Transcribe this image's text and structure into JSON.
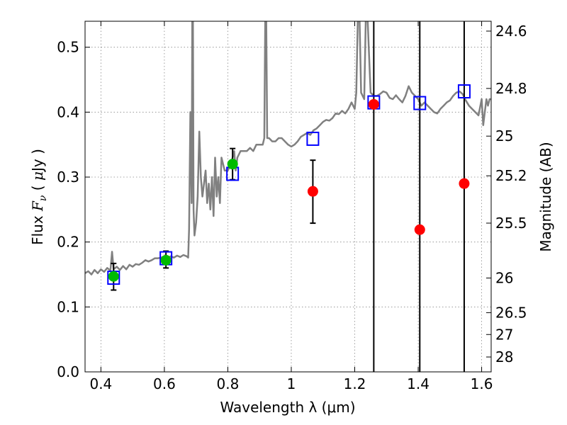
{
  "chart_data": {
    "type": "scatter",
    "xlabel": "Wavelength  λ (μm)",
    "ylabel": "Flux  F_ν ( μJy )",
    "ylabel_parts": {
      "pre": "Flux  ",
      "F": "F",
      "nu": "ν",
      "paren_open": "  ( ",
      "mu": "μ",
      "unit": "Jy )"
    },
    "y2label": "Magnitude (AB)",
    "xlim": [
      0.35,
      1.63
    ],
    "ylim": [
      0.0,
      0.54
    ],
    "grid": true,
    "xticks": [
      {
        "v": 0.4,
        "label": "0.4"
      },
      {
        "v": 0.6,
        "label": "0.6"
      },
      {
        "v": 0.8,
        "label": "0.8"
      },
      {
        "v": 1.0,
        "label": "1"
      },
      {
        "v": 1.2,
        "label": "1.2"
      },
      {
        "v": 1.4,
        "label": "1.4"
      },
      {
        "v": 1.6,
        "label": "1.6"
      }
    ],
    "yticks": [
      {
        "v": 0.0,
        "label": "0.0"
      },
      {
        "v": 0.1,
        "label": "0.1"
      },
      {
        "v": 0.2,
        "label": "0.2"
      },
      {
        "v": 0.3,
        "label": "0.3"
      },
      {
        "v": 0.4,
        "label": "0.4"
      },
      {
        "v": 0.5,
        "label": "0.5"
      }
    ],
    "y2ticks": [
      {
        "label": "24.6"
      },
      {
        "label": "24.8"
      },
      {
        "label": "25"
      },
      {
        "label": "25.2"
      },
      {
        "label": "25.5"
      },
      {
        "label": "26"
      },
      {
        "label": "26.5"
      },
      {
        "label": "27"
      },
      {
        "label": "28"
      }
    ],
    "colors": {
      "spectrum": "#808080",
      "model": "#0000ff",
      "detection": "#00bb00",
      "upper": "#ff0000",
      "errorbar": "#000000",
      "vline": "#000000",
      "grid": "#888888"
    },
    "spectrum": [
      [
        0.35,
        0.152
      ],
      [
        0.36,
        0.155
      ],
      [
        0.37,
        0.15
      ],
      [
        0.38,
        0.157
      ],
      [
        0.39,
        0.152
      ],
      [
        0.4,
        0.158
      ],
      [
        0.41,
        0.154
      ],
      [
        0.42,
        0.16
      ],
      [
        0.43,
        0.156
      ],
      [
        0.435,
        0.185
      ],
      [
        0.44,
        0.158
      ],
      [
        0.45,
        0.162
      ],
      [
        0.46,
        0.157
      ],
      [
        0.47,
        0.163
      ],
      [
        0.48,
        0.158
      ],
      [
        0.49,
        0.165
      ],
      [
        0.5,
        0.162
      ],
      [
        0.51,
        0.166
      ],
      [
        0.52,
        0.165
      ],
      [
        0.53,
        0.168
      ],
      [
        0.54,
        0.172
      ],
      [
        0.55,
        0.17
      ],
      [
        0.56,
        0.172
      ],
      [
        0.57,
        0.175
      ],
      [
        0.58,
        0.175
      ],
      [
        0.59,
        0.176
      ],
      [
        0.6,
        0.178
      ],
      [
        0.61,
        0.175
      ],
      [
        0.62,
        0.178
      ],
      [
        0.63,
        0.176
      ],
      [
        0.64,
        0.179
      ],
      [
        0.65,
        0.177
      ],
      [
        0.66,
        0.18
      ],
      [
        0.67,
        0.178
      ],
      [
        0.675,
        0.176
      ],
      [
        0.678,
        0.22
      ],
      [
        0.682,
        0.4
      ],
      [
        0.686,
        0.26
      ],
      [
        0.688,
        0.55
      ],
      [
        0.69,
        0.55
      ],
      [
        0.692,
        0.25
      ],
      [
        0.695,
        0.21
      ],
      [
        0.7,
        0.23
      ],
      [
        0.705,
        0.27
      ],
      [
        0.71,
        0.37
      ],
      [
        0.715,
        0.3
      ],
      [
        0.72,
        0.27
      ],
      [
        0.73,
        0.31
      ],
      [
        0.735,
        0.26
      ],
      [
        0.74,
        0.29
      ],
      [
        0.745,
        0.25
      ],
      [
        0.75,
        0.3
      ],
      [
        0.755,
        0.24
      ],
      [
        0.76,
        0.33
      ],
      [
        0.765,
        0.27
      ],
      [
        0.77,
        0.3
      ],
      [
        0.775,
        0.26
      ],
      [
        0.78,
        0.33
      ],
      [
        0.79,
        0.31
      ],
      [
        0.8,
        0.31
      ],
      [
        0.81,
        0.32
      ],
      [
        0.82,
        0.34
      ],
      [
        0.825,
        0.31
      ],
      [
        0.83,
        0.33
      ],
      [
        0.84,
        0.34
      ],
      [
        0.85,
        0.34
      ],
      [
        0.86,
        0.34
      ],
      [
        0.87,
        0.345
      ],
      [
        0.88,
        0.34
      ],
      [
        0.89,
        0.35
      ],
      [
        0.9,
        0.35
      ],
      [
        0.91,
        0.35
      ],
      [
        0.915,
        0.36
      ],
      [
        0.918,
        0.55
      ],
      [
        0.921,
        0.55
      ],
      [
        0.924,
        0.36
      ],
      [
        0.93,
        0.36
      ],
      [
        0.94,
        0.355
      ],
      [
        0.95,
        0.355
      ],
      [
        0.96,
        0.36
      ],
      [
        0.97,
        0.36
      ],
      [
        0.98,
        0.355
      ],
      [
        0.99,
        0.35
      ],
      [
        1.0,
        0.347
      ],
      [
        1.01,
        0.35
      ],
      [
        1.02,
        0.355
      ],
      [
        1.03,
        0.362
      ],
      [
        1.04,
        0.365
      ],
      [
        1.05,
        0.368
      ],
      [
        1.06,
        0.365
      ],
      [
        1.07,
        0.372
      ],
      [
        1.08,
        0.375
      ],
      [
        1.09,
        0.38
      ],
      [
        1.1,
        0.385
      ],
      [
        1.11,
        0.388
      ],
      [
        1.12,
        0.387
      ],
      [
        1.13,
        0.391
      ],
      [
        1.14,
        0.398
      ],
      [
        1.15,
        0.397
      ],
      [
        1.16,
        0.402
      ],
      [
        1.17,
        0.398
      ],
      [
        1.18,
        0.405
      ],
      [
        1.19,
        0.415
      ],
      [
        1.2,
        0.405
      ],
      [
        1.205,
        0.43
      ],
      [
        1.21,
        0.55
      ],
      [
        1.215,
        0.55
      ],
      [
        1.22,
        0.43
      ],
      [
        1.23,
        0.42
      ],
      [
        1.235,
        0.55
      ],
      [
        1.24,
        0.55
      ],
      [
        1.25,
        0.43
      ],
      [
        1.26,
        0.425
      ],
      [
        1.27,
        0.425
      ],
      [
        1.28,
        0.428
      ],
      [
        1.29,
        0.432
      ],
      [
        1.3,
        0.43
      ],
      [
        1.31,
        0.422
      ],
      [
        1.32,
        0.42
      ],
      [
        1.33,
        0.426
      ],
      [
        1.34,
        0.42
      ],
      [
        1.35,
        0.415
      ],
      [
        1.36,
        0.425
      ],
      [
        1.37,
        0.44
      ],
      [
        1.38,
        0.43
      ],
      [
        1.39,
        0.425
      ],
      [
        1.4,
        0.42
      ],
      [
        1.41,
        0.41
      ],
      [
        1.42,
        0.415
      ],
      [
        1.43,
        0.41
      ],
      [
        1.44,
        0.405
      ],
      [
        1.45,
        0.4
      ],
      [
        1.46,
        0.398
      ],
      [
        1.47,
        0.405
      ],
      [
        1.48,
        0.41
      ],
      [
        1.49,
        0.415
      ],
      [
        1.5,
        0.418
      ],
      [
        1.51,
        0.425
      ],
      [
        1.52,
        0.43
      ],
      [
        1.53,
        0.432
      ],
      [
        1.54,
        0.428
      ],
      [
        1.55,
        0.418
      ],
      [
        1.56,
        0.41
      ],
      [
        1.57,
        0.405
      ],
      [
        1.58,
        0.4
      ],
      [
        1.59,
        0.395
      ],
      [
        1.6,
        0.42
      ],
      [
        1.605,
        0.38
      ],
      [
        1.61,
        0.4
      ],
      [
        1.615,
        0.42
      ],
      [
        1.62,
        0.41
      ],
      [
        1.625,
        0.42
      ],
      [
        1.63,
        0.42
      ]
    ],
    "model_points": [
      {
        "x": 0.44,
        "y": 0.145
      },
      {
        "x": 0.605,
        "y": 0.175
      },
      {
        "x": 0.815,
        "y": 0.305
      },
      {
        "x": 1.068,
        "y": 0.359
      },
      {
        "x": 1.26,
        "y": 0.415
      },
      {
        "x": 1.405,
        "y": 0.414
      },
      {
        "x": 1.545,
        "y": 0.432
      }
    ],
    "detections": [
      {
        "x": 0.44,
        "y": 0.147,
        "ylo": 0.126,
        "yhi": 0.167
      },
      {
        "x": 0.605,
        "y": 0.172,
        "ylo": 0.16,
        "yhi": 0.186
      },
      {
        "x": 0.815,
        "y": 0.32,
        "ylo": 0.296,
        "yhi": 0.344
      }
    ],
    "upper_points": [
      {
        "x": 1.068,
        "y": 0.278,
        "ylo": 0.229,
        "yhi": 0.326
      },
      {
        "x": 1.26,
        "y": 0.412
      },
      {
        "x": 1.405,
        "y": 0.219
      },
      {
        "x": 1.545,
        "y": 0.29
      }
    ],
    "vlines": [
      1.26,
      1.405,
      1.545
    ]
  }
}
